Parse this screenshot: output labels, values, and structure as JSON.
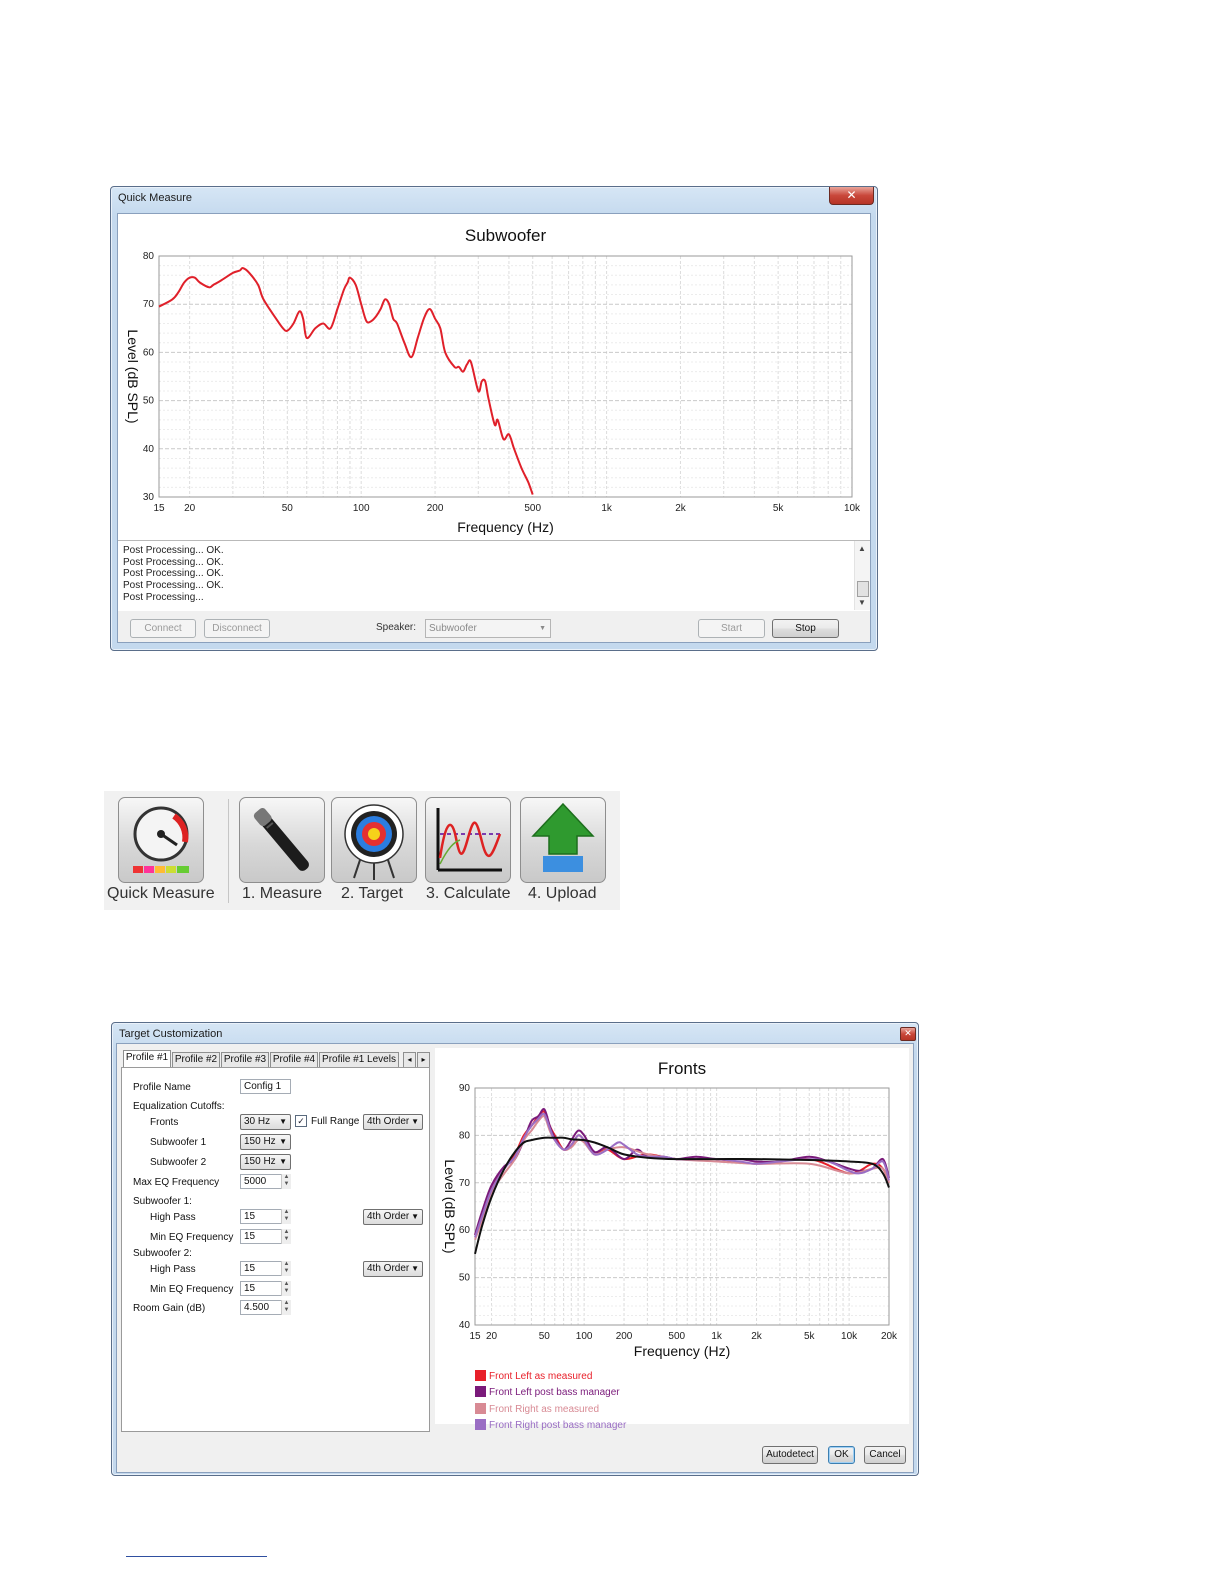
{
  "quick_measure": {
    "window_title": "Quick Measure",
    "close_glyph": "✕",
    "chart_title": "Subwoofer",
    "log_lines": [
      "Post Processing... OK.",
      "Post Processing... OK.",
      "Post Processing... OK.",
      "Post Processing... OK.",
      "Post Processing..."
    ],
    "buttons": {
      "connect": "Connect",
      "disconnect": "Disconnect",
      "start": "Start",
      "stop": "Stop"
    },
    "speaker_label": "Speaker:",
    "speaker_value": "Subwoofer"
  },
  "toolbar": {
    "items": [
      {
        "label": "Quick Measure",
        "icon": "gauge-icon"
      },
      {
        "label": "1. Measure",
        "icon": "microphone-icon"
      },
      {
        "label": "2. Target",
        "icon": "target-icon"
      },
      {
        "label": "3. Calculate",
        "icon": "graph-icon"
      },
      {
        "label": "4. Upload",
        "icon": "upload-arrow-icon"
      }
    ]
  },
  "target_customization": {
    "window_title": "Target Customization",
    "close_glyph": "✕",
    "tabs": [
      "Profile #1",
      "Profile #2",
      "Profile #3",
      "Profile #4",
      "Profile #1 Levels"
    ],
    "tab_scroll": [
      "◂",
      "▸"
    ],
    "form": {
      "profile_name_label": "Profile Name",
      "profile_name_value": "Config 1",
      "eq_cutoffs_label": "Equalization Cutoffs:",
      "fronts_label": "Fronts",
      "fronts_value": "30 Hz",
      "full_range_label": "Full Range",
      "full_range_checked": "✓",
      "fronts_order": "4th Order",
      "sub1_label": "Subwoofer 1",
      "sub1_value": "150 Hz",
      "sub2_label": "Subwoofer 2",
      "sub2_value": "150 Hz",
      "max_eq_label": "Max EQ Frequency",
      "max_eq_value": "5000",
      "sub1_section": "Subwoofer 1:",
      "high_pass_label": "High Pass",
      "sub1_hp_value": "15",
      "sub1_order": "4th Order",
      "min_eq_label": "Min EQ Frequency",
      "sub1_min_eq": "15",
      "sub2_section": "Subwoofer 2:",
      "sub2_hp_value": "15",
      "sub2_order": "4th Order",
      "sub2_min_eq": "15",
      "room_gain_label": "Room Gain (dB)",
      "room_gain_value": "4.500"
    },
    "buttons": {
      "autodetect": "Autodetect",
      "ok": "OK",
      "cancel": "Cancel"
    }
  },
  "chart_data": [
    {
      "type": "line",
      "title": "Subwoofer",
      "xlabel": "Frequency (Hz)",
      "ylabel": "Level (dB SPL)",
      "xscale": "log",
      "xlim": [
        15,
        10000
      ],
      "ylim": [
        30,
        80
      ],
      "xticks": [
        15,
        20,
        50,
        100,
        200,
        500,
        1000,
        2000,
        5000,
        10000
      ],
      "xtick_labels": [
        "15",
        "20",
        "50",
        "100",
        "200",
        "500",
        "1k",
        "2k",
        "5k",
        "10k"
      ],
      "yticks": [
        30,
        40,
        50,
        60,
        70,
        80
      ],
      "grid": true,
      "series": [
        {
          "color": "#e0202a",
          "x": [
            15,
            17,
            18,
            19,
            20,
            21,
            22,
            24,
            25,
            27,
            30,
            32,
            33,
            35,
            38,
            40,
            45,
            48,
            50,
            53,
            56,
            58,
            60,
            65,
            70,
            75,
            80,
            85,
            88,
            90,
            95,
            100,
            105,
            110,
            115,
            120,
            125,
            130,
            135,
            140,
            150,
            160,
            170,
            180,
            190,
            200,
            210,
            220,
            240,
            250,
            260,
            270,
            280,
            300,
            310,
            320,
            330,
            350,
            360,
            380,
            400,
            420,
            450,
            480,
            500
          ],
          "y": [
            69.5,
            71,
            72.5,
            74.5,
            75.5,
            75.5,
            74.5,
            73.5,
            74,
            75,
            76.5,
            77,
            77.5,
            76.5,
            74,
            71,
            67,
            65,
            64.5,
            66,
            68.5,
            67,
            63,
            65,
            66,
            65,
            69,
            73,
            74.5,
            75.5,
            74,
            70,
            66.5,
            66.5,
            67.5,
            69,
            71,
            70,
            67,
            66,
            62,
            59,
            63,
            67,
            69,
            67,
            65,
            60,
            57,
            57,
            56,
            57.5,
            58,
            52,
            54,
            54,
            50.5,
            45,
            46,
            42,
            43,
            40,
            36,
            33,
            30.5
          ]
        }
      ]
    },
    {
      "type": "line",
      "title": "Fronts",
      "xlabel": "Frequency (Hz)",
      "ylabel": "Level (dB SPL)",
      "xscale": "log",
      "xlim": [
        15,
        20000
      ],
      "ylim": [
        40,
        90
      ],
      "xticks": [
        15,
        20,
        50,
        100,
        200,
        500,
        1000,
        2000,
        5000,
        10000,
        20000
      ],
      "xtick_labels": [
        "15",
        "20",
        "50",
        "100",
        "200",
        "500",
        "1k",
        "2k",
        "5k",
        "10k",
        "20k"
      ],
      "yticks": [
        40,
        50,
        60,
        70,
        80,
        90
      ],
      "grid": true,
      "legend_position": "bottom-left",
      "series": [
        {
          "name": "Front Left as measured",
          "color": "#e8202a",
          "x": [
            15,
            17,
            20,
            25,
            30,
            35,
            40,
            45,
            50,
            55,
            60,
            70,
            80,
            90,
            100,
            120,
            150,
            200,
            300,
            500,
            1000,
            2000,
            5000,
            10000,
            15000,
            18000,
            20000
          ],
          "y": [
            59,
            63,
            69,
            73,
            76,
            80,
            82,
            84,
            85,
            82,
            80,
            77,
            78,
            80,
            79,
            76,
            77,
            75,
            76,
            75,
            75,
            74,
            75,
            72,
            74,
            73,
            70
          ]
        },
        {
          "name": "Front Left post bass manager",
          "color": "#7a1a7a",
          "x": [
            15,
            17,
            20,
            25,
            30,
            35,
            40,
            45,
            50,
            55,
            60,
            70,
            80,
            90,
            100,
            120,
            150,
            200,
            250,
            300,
            400,
            500,
            700,
            1000,
            1500,
            2000,
            3000,
            5000,
            7000,
            10000,
            12000,
            15000,
            18000,
            20000
          ],
          "y": [
            59,
            64,
            69.5,
            73.5,
            75,
            79,
            83,
            84,
            85.5,
            82,
            79.5,
            77,
            79,
            81,
            80,
            76.5,
            77.5,
            75,
            77,
            75.5,
            75.5,
            75,
            75.5,
            75,
            75,
            74.5,
            74.5,
            75.5,
            74.5,
            73,
            72.5,
            73,
            75,
            71
          ]
        },
        {
          "name": "Front Right as measured",
          "color": "#d88a94",
          "x": [
            15,
            17,
            20,
            25,
            30,
            35,
            40,
            45,
            50,
            55,
            60,
            70,
            80,
            90,
            100,
            120,
            150,
            200,
            300,
            500,
            1000,
            2000,
            5000,
            10000,
            15000,
            18000,
            20000
          ],
          "y": [
            58,
            62,
            68,
            72,
            75,
            79,
            81,
            83,
            84,
            81,
            79,
            77,
            77.5,
            79,
            78.5,
            76,
            77,
            77.5,
            76,
            75,
            74.5,
            74,
            74,
            72,
            73,
            73,
            70
          ]
        },
        {
          "name": "Front Right post bass manager",
          "color": "#9a6ec4",
          "x": [
            15,
            17,
            20,
            25,
            30,
            35,
            40,
            45,
            50,
            55,
            60,
            70,
            80,
            90,
            100,
            120,
            150,
            180,
            200,
            250,
            300,
            400,
            500,
            700,
            1000,
            1500,
            2000,
            3000,
            5000,
            7000,
            10000,
            12000,
            15000,
            18000,
            20000
          ],
          "y": [
            58.5,
            63,
            68.5,
            73,
            75.5,
            79.5,
            82,
            83.5,
            84.5,
            81.5,
            79,
            77,
            78,
            80,
            79,
            76,
            77,
            78.5,
            78,
            76,
            75.5,
            75.5,
            75,
            75,
            75,
            74.5,
            74,
            74.5,
            75,
            74.5,
            72.5,
            72,
            73,
            74.5,
            70.5
          ]
        },
        {
          "color": "#111111",
          "x": [
            15,
            17,
            20,
            25,
            30,
            35,
            40,
            50,
            60,
            70,
            80,
            100,
            120,
            150,
            200,
            300,
            500,
            1000,
            2000,
            5000,
            10000,
            15000,
            18000,
            20000
          ],
          "y": [
            55,
            61,
            67,
            73,
            76.5,
            78.5,
            79,
            79.5,
            79.5,
            79.5,
            79.2,
            79,
            78.5,
            77.5,
            76,
            75.3,
            75,
            75,
            75,
            74.8,
            74.5,
            74,
            72,
            69
          ]
        }
      ]
    }
  ]
}
